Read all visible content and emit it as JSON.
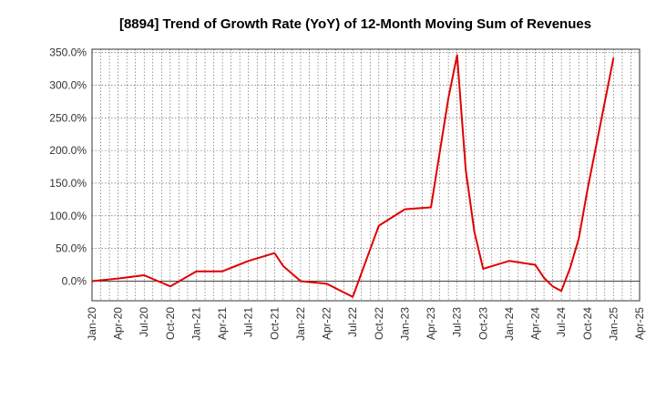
{
  "chart_data": {
    "type": "line",
    "title": "[8894]  Trend of Growth Rate (YoY) of 12-Month Moving Sum of Revenues",
    "xlabel": "",
    "ylabel": "",
    "ylim": [
      -30,
      355
    ],
    "y_ticks": [
      0,
      50,
      100,
      150,
      200,
      250,
      300,
      350
    ],
    "y_tick_labels": [
      "0.0%",
      "50.0%",
      "100.0%",
      "150.0%",
      "200.0%",
      "250.0%",
      "300.0%",
      "350.0%"
    ],
    "x_start": "2020-01",
    "x_end": "2025-04",
    "x_tick_labels": [
      "Jan-20",
      "Apr-20",
      "Jul-20",
      "Oct-20",
      "Jan-21",
      "Apr-21",
      "Jul-21",
      "Oct-21",
      "Jan-22",
      "Apr-22",
      "Jul-22",
      "Oct-22",
      "Jan-23",
      "Apr-23",
      "Jul-23",
      "Oct-23",
      "Jan-24",
      "Apr-24",
      "Jul-24",
      "Oct-24",
      "Jan-25",
      "Apr-25"
    ],
    "grid": true,
    "colors": {
      "line": "#e00000",
      "grid": "#555555",
      "axis": "#333333"
    },
    "series": [
      {
        "name": "",
        "x": [
          "2020-01",
          "2020-04",
          "2020-07",
          "2020-10",
          "2021-01",
          "2021-04",
          "2021-07",
          "2021-10",
          "2021-11",
          "2022-01",
          "2022-04",
          "2022-07",
          "2022-10",
          "2023-01",
          "2023-04",
          "2023-06",
          "2023-07",
          "2023-08",
          "2023-09",
          "2023-10",
          "2024-01",
          "2024-04",
          "2024-05",
          "2024-06",
          "2024-07",
          "2024-08",
          "2024-09",
          "2024-10",
          "2025-01"
        ],
        "values": [
          0,
          4,
          9,
          -8,
          15,
          15,
          31,
          43,
          23,
          0,
          -4,
          -24,
          85,
          110,
          113,
          280,
          346,
          170,
          75,
          19,
          31,
          25,
          5,
          -8,
          -15,
          20,
          65,
          140,
          342
        ]
      }
    ]
  }
}
